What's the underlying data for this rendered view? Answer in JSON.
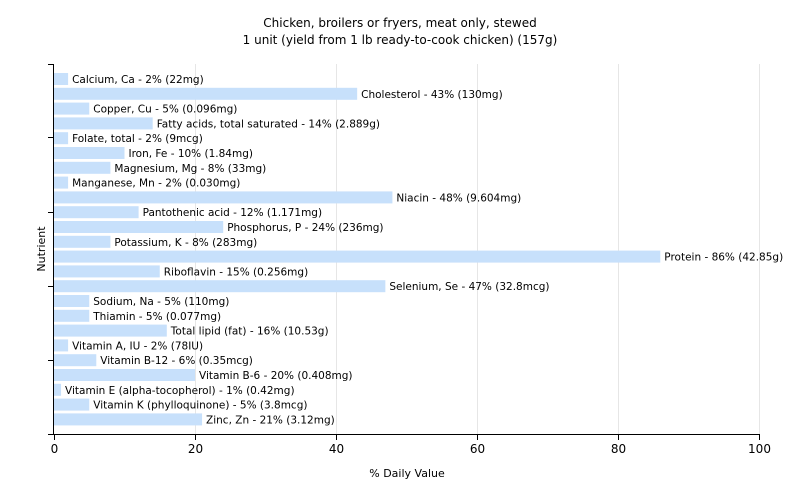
{
  "chart_data": {
    "type": "bar",
    "orientation": "horizontal",
    "title": "Chicken, broilers or fryers, meat only, stewed",
    "subtitle": "1 unit (yield from 1 lb ready-to-cook chicken) (157g)",
    "xlabel": "% Daily Value",
    "ylabel": "Nutrient",
    "xlim": [
      0,
      100
    ],
    "xticks": [
      0,
      20,
      40,
      60,
      80,
      100
    ],
    "grid": true,
    "bar_color": "#c7e0fb",
    "categories": [
      "Calcium, Ca",
      "Cholesterol",
      "Copper, Cu",
      "Fatty acids, total saturated",
      "Folate, total",
      "Iron, Fe",
      "Magnesium, Mg",
      "Manganese, Mn",
      "Niacin",
      "Pantothenic acid",
      "Phosphorus, P",
      "Potassium, K",
      "Protein",
      "Riboflavin",
      "Selenium, Se",
      "Sodium, Na",
      "Thiamin",
      "Total lipid (fat)",
      "Vitamin A, IU",
      "Vitamin B-12",
      "Vitamin B-6",
      "Vitamin E (alpha-tocopherol)",
      "Vitamin K (phylloquinone)",
      "Zinc, Zn"
    ],
    "values": [
      2,
      43,
      5,
      14,
      2,
      10,
      8,
      2,
      48,
      12,
      24,
      8,
      86,
      15,
      47,
      5,
      5,
      16,
      2,
      6,
      20,
      1,
      5,
      21
    ],
    "labels": [
      "Calcium, Ca - 2% (22mg)",
      "Cholesterol - 43% (130mg)",
      "Copper, Cu - 5% (0.096mg)",
      "Fatty acids, total saturated - 14% (2.889g)",
      "Folate, total - 2% (9mcg)",
      "Iron, Fe - 10% (1.84mg)",
      "Magnesium, Mg - 8% (33mg)",
      "Manganese, Mn - 2% (0.030mg)",
      "Niacin - 48% (9.604mg)",
      "Pantothenic acid - 12% (1.171mg)",
      "Phosphorus, P - 24% (236mg)",
      "Potassium, K - 8% (283mg)",
      "Protein - 86% (42.85g)",
      "Riboflavin - 15% (0.256mg)",
      "Selenium, Se - 47% (32.8mcg)",
      "Sodium, Na - 5% (110mg)",
      "Thiamin - 5% (0.077mg)",
      "Total lipid (fat) - 16% (10.53g)",
      "Vitamin A, IU - 2% (78IU)",
      "Vitamin B-12 - 6% (0.35mcg)",
      "Vitamin B-6 - 20% (0.408mg)",
      "Vitamin E (alpha-tocopherol) - 1% (0.42mg)",
      "Vitamin K (phylloquinone) - 5% (3.8mcg)",
      "Zinc, Zn - 21% (3.12mg)"
    ]
  }
}
